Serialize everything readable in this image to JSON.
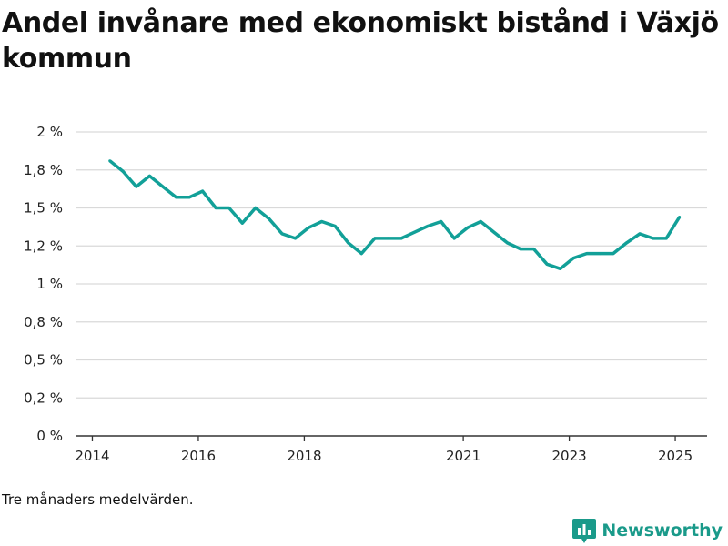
{
  "title": "Andel invånare med ekonomiskt bistånd i Växjö kommun",
  "footnote": "Tre månaders medelvärden.",
  "brand": {
    "name": "Newsworthy",
    "icon": "newsworthy-logo-icon",
    "color": "#1a9a8a"
  },
  "colors": {
    "line": "#12a098",
    "grid": "#d9d9d9",
    "axis": "#333333"
  },
  "chart_data": {
    "type": "line",
    "title": "Andel invånare med ekonomiskt bistånd i Växjö kommun",
    "xlabel": "",
    "ylabel": "",
    "x_range": [
      2013.7,
      2025.6
    ],
    "ylim": [
      0,
      2
    ],
    "y_ticks": [
      {
        "value": 0,
        "label": "0 %"
      },
      {
        "value": 0.25,
        "label": "0,2 %"
      },
      {
        "value": 0.5,
        "label": "0,5 %"
      },
      {
        "value": 0.75,
        "label": "0,8 %"
      },
      {
        "value": 1.0,
        "label": "1 %"
      },
      {
        "value": 1.25,
        "label": "1,2 %"
      },
      {
        "value": 1.5,
        "label": "1,5 %"
      },
      {
        "value": 1.75,
        "label": "1,8 %"
      },
      {
        "value": 2.0,
        "label": "2 %"
      }
    ],
    "x_ticks": [
      {
        "value": 2014,
        "label": "2014"
      },
      {
        "value": 2016,
        "label": "2016"
      },
      {
        "value": 2018,
        "label": "2018"
      },
      {
        "value": 2021,
        "label": "2021"
      },
      {
        "value": 2023,
        "label": "2023"
      },
      {
        "value": 2025,
        "label": "2025"
      }
    ],
    "grid": true,
    "series": [
      {
        "x": [
          2014.33,
          2014.58,
          2014.83,
          2015.08,
          2015.33,
          2015.58,
          2015.83,
          2016.08,
          2016.33,
          2016.58,
          2016.83,
          2017.08,
          2017.33,
          2017.58,
          2017.83,
          2018.08,
          2018.33,
          2018.58,
          2018.83,
          2019.08,
          2019.33,
          2019.58,
          2019.83,
          2020.08,
          2020.33,
          2020.58,
          2020.83,
          2021.08,
          2021.33,
          2021.58,
          2021.83,
          2022.08,
          2022.33,
          2022.58,
          2022.83,
          2023.08,
          2023.33,
          2023.58,
          2023.83,
          2024.08,
          2024.33,
          2024.58,
          2024.83,
          2025.08
        ],
        "y": [
          1.81,
          1.74,
          1.64,
          1.71,
          1.64,
          1.57,
          1.57,
          1.61,
          1.5,
          1.5,
          1.4,
          1.5,
          1.43,
          1.33,
          1.3,
          1.37,
          1.41,
          1.38,
          1.27,
          1.2,
          1.3,
          1.3,
          1.3,
          1.34,
          1.38,
          1.41,
          1.3,
          1.37,
          1.41,
          1.34,
          1.27,
          1.23,
          1.23,
          1.13,
          1.1,
          1.17,
          1.2,
          1.2,
          1.2,
          1.27,
          1.33,
          1.3,
          1.3,
          1.44
        ]
      }
    ]
  }
}
